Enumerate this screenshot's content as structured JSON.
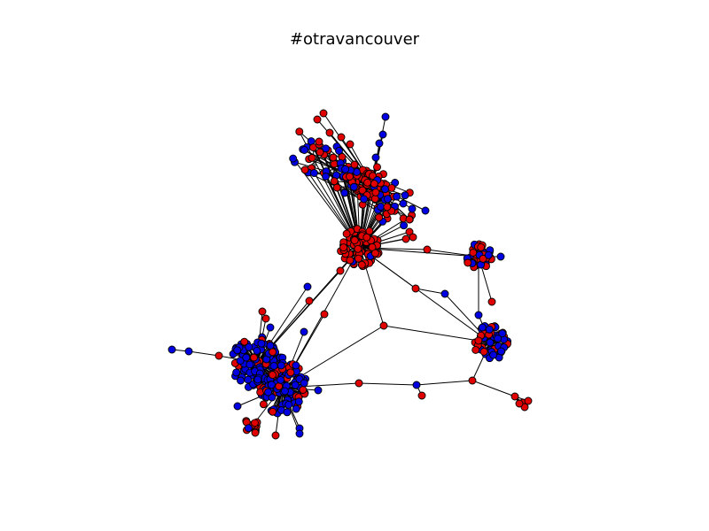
{
  "title": "#otravancouver",
  "colors": {
    "node_a": "#e00000",
    "node_b": "#0000e0",
    "node_stroke": "#000000",
    "edge": "#000000",
    "background": "#ffffff"
  }
}
